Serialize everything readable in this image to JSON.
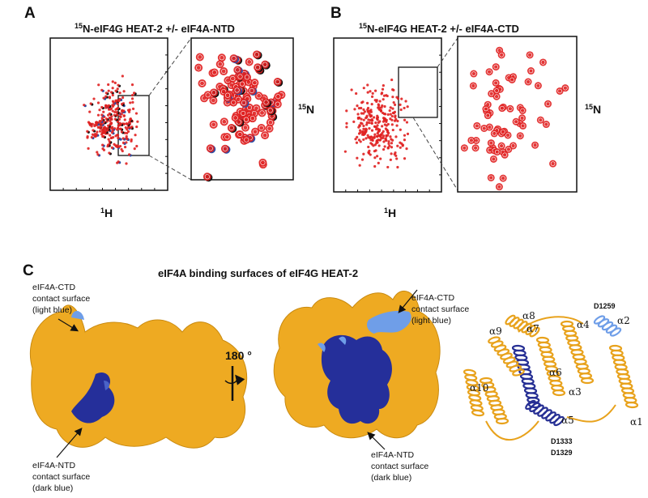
{
  "panels": [
    {
      "label": "A",
      "title": {
        "sup": "15",
        "text": "N-eIF4G HEAT-2 +/- eIF4A-NTD"
      },
      "y_axis": {
        "sup": "15",
        "text": "N"
      },
      "x_axis": {
        "sup": "1",
        "text": "H"
      }
    },
    {
      "label": "B",
      "title": {
        "sup": "15",
        "text": "N-eIF4G HEAT-2 +/- eIF4A-CTD"
      },
      "y_axis": {
        "sup": "15",
        "text": "N"
      },
      "x_axis": {
        "sup": "1",
        "text": "H"
      }
    }
  ],
  "structure": {
    "label": "C",
    "title": "eIF4A binding surfaces of eIF4G HEAT-2",
    "rotation": "180 °",
    "callouts": [
      {
        "lines": [
          "eIF4A-CTD",
          "contact surface",
          "(light blue)"
        ]
      },
      {
        "lines": [
          "eIF4A-NTD",
          "contact surface",
          "(dark blue)"
        ]
      },
      {
        "lines": [
          "eIF4A-CTD",
          "contact surface",
          "(light blue)"
        ]
      },
      {
        "lines": [
          "eIF4A-NTD",
          "contact surface",
          "(dark blue)"
        ]
      }
    ],
    "helices": [
      "α1",
      "α2",
      "α3",
      "α4",
      "α5",
      "α6",
      "α7",
      "α8",
      "α9",
      "α10"
    ],
    "residues": [
      "D1259",
      "D1333",
      "D1329"
    ]
  }
}
